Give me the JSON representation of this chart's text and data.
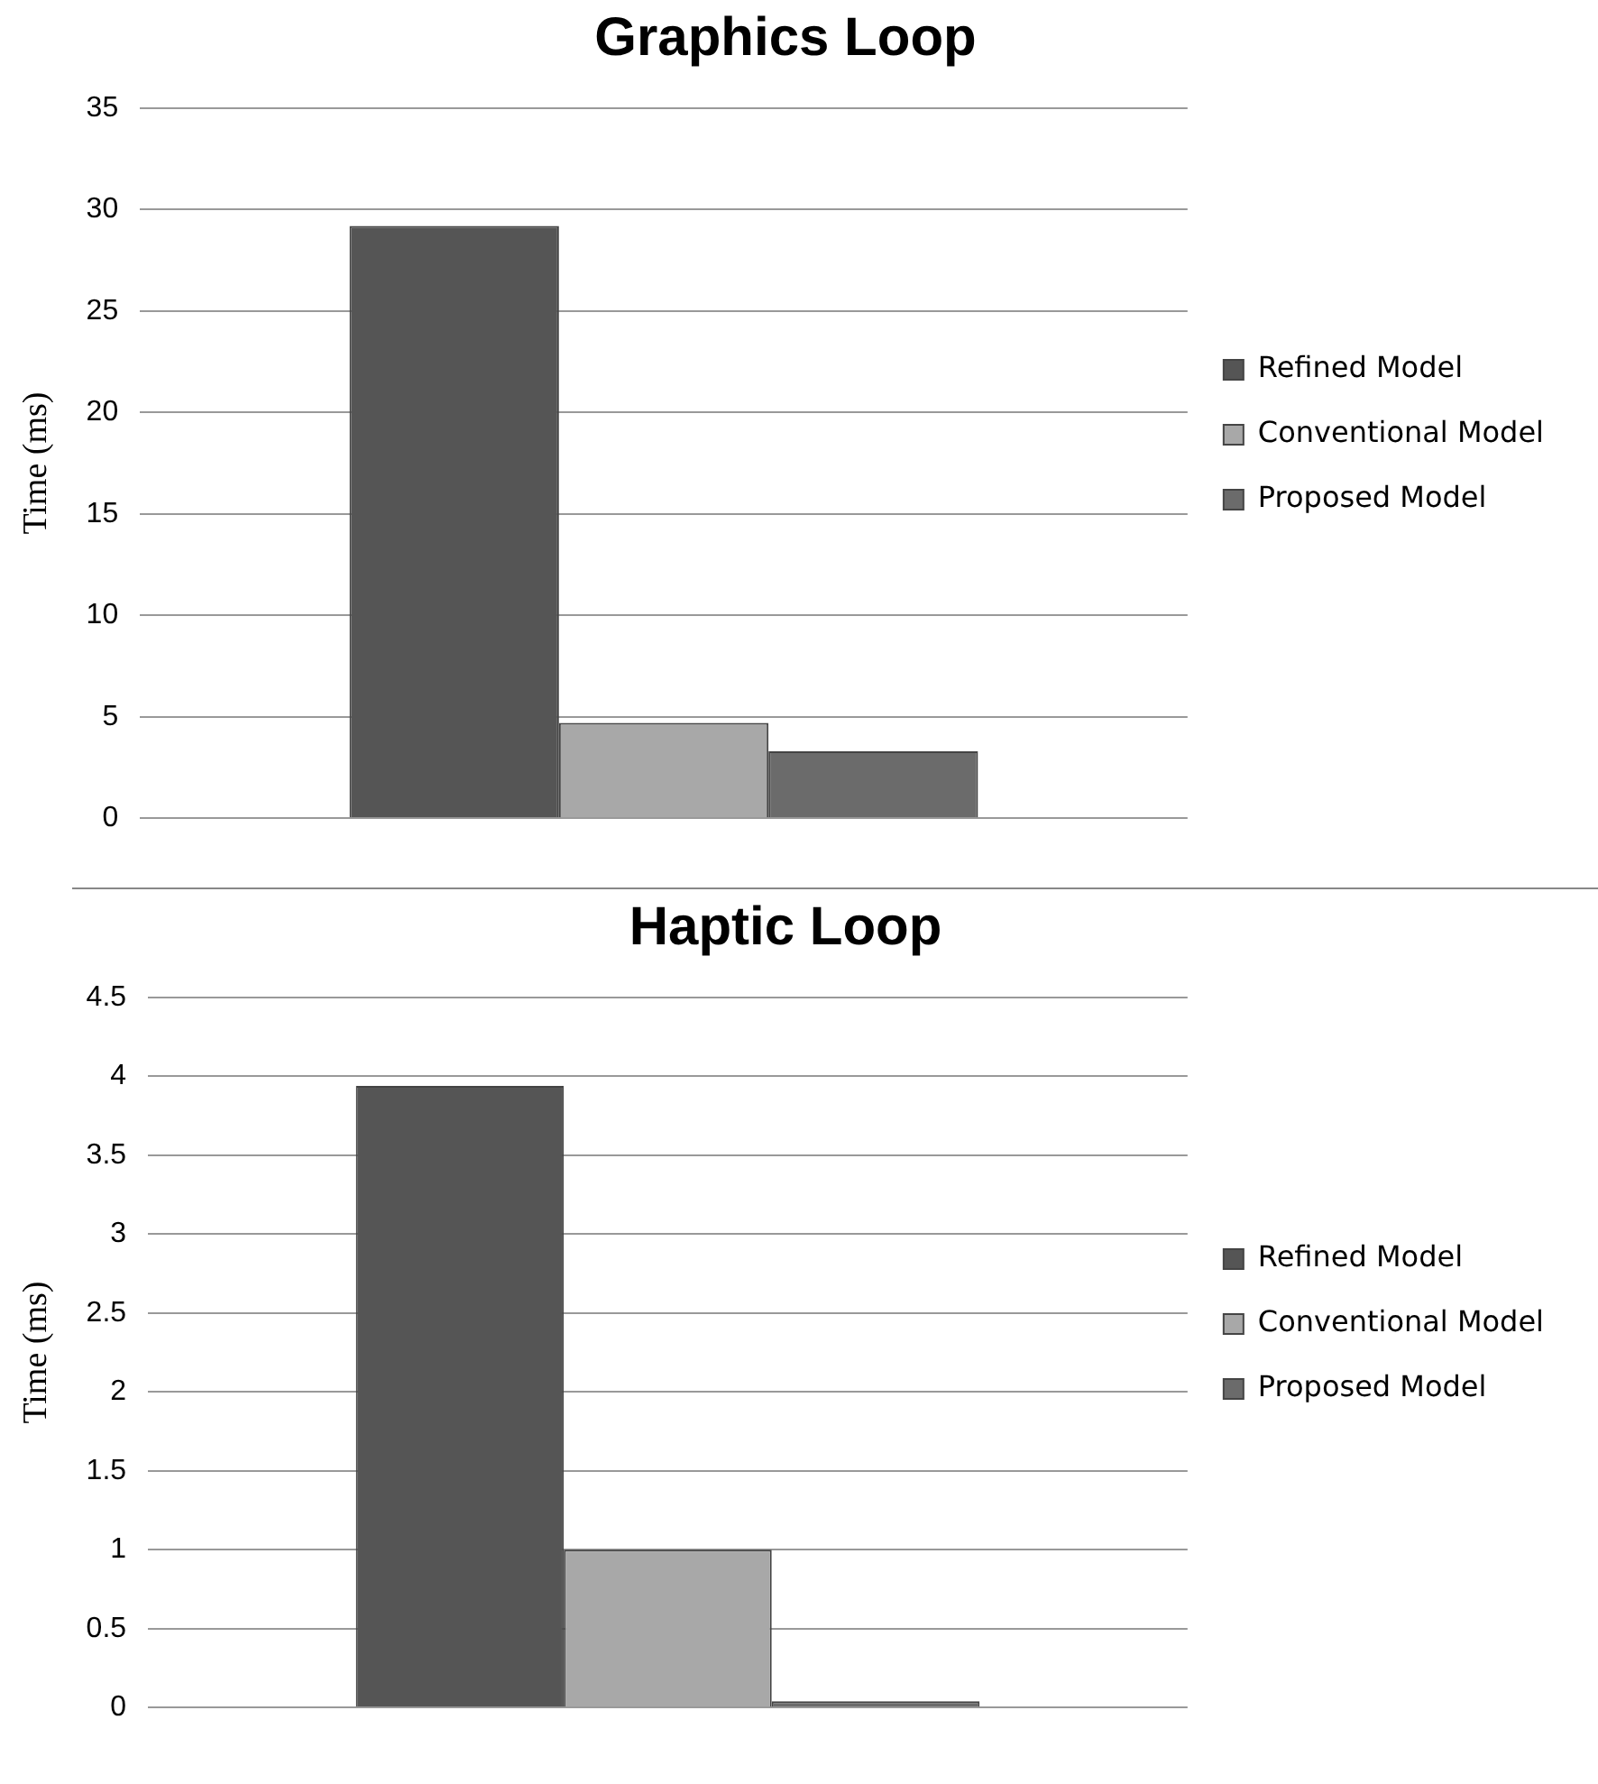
{
  "chart_data": [
    {
      "type": "bar",
      "title": "Graphics Loop",
      "ylabel": "Time (ms)",
      "categories": [
        null
      ],
      "series": [
        {
          "name": "Refined Model",
          "color": "#555555",
          "values": [
            29.2
          ]
        },
        {
          "name": "Conventional Model",
          "color": "#a8a8a8",
          "values": [
            4.7
          ]
        },
        {
          "name": "Proposed Model",
          "color": "#6b6b6b",
          "values": [
            3.3
          ]
        }
      ],
      "ylim": [
        0,
        35
      ],
      "yticks": [
        0,
        5,
        10,
        15,
        20,
        25,
        30,
        35
      ],
      "grid": "y",
      "legend": "right"
    },
    {
      "type": "bar",
      "title": "Haptic Loop",
      "ylabel": "Time (ms)",
      "categories": [
        null
      ],
      "series": [
        {
          "name": "Refined Model",
          "color": "#555555",
          "values": [
            3.94
          ]
        },
        {
          "name": "Conventional Model",
          "color": "#a8a8a8",
          "values": [
            1.0
          ]
        },
        {
          "name": "Proposed Model",
          "color": "#6b6b6b",
          "values": [
            0.04
          ]
        }
      ],
      "ylim": [
        0,
        4.5
      ],
      "yticks": [
        0,
        0.5,
        1,
        1.5,
        2,
        2.5,
        3,
        3.5,
        4,
        4.5
      ],
      "grid": "y",
      "legend": "right"
    }
  ]
}
